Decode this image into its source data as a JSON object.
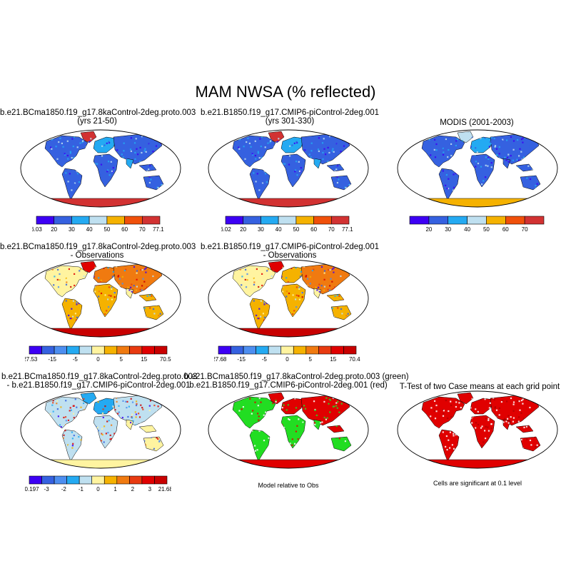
{
  "title": "MAM NWSA (% reflected)",
  "colors": {
    "abs_scale": [
      "#3d00f5",
      "#3561e0",
      "#24aaf2",
      "#bfe0f0",
      "#f5b200",
      "#f0500a",
      "#d23232"
    ],
    "diff_scale": [
      "#3d00f5",
      "#3561e0",
      "#4d8ef0",
      "#24aaf2",
      "#bfe0f0",
      "#fff4a0",
      "#f5b200",
      "#f07a10",
      "#e83a10",
      "#e00000",
      "#c80000"
    ],
    "ocean": "#ffffff",
    "model_green": "#22dd22",
    "obs_red": "#e00000",
    "significant": "#e00000"
  },
  "panels": [
    {
      "title": "b.e21.BCma1850.f19_g17.8kaControl-2deg.proto.003",
      "subtitle": "(yrs 21-50)",
      "colorbar_labels": [
        "6.03",
        "20",
        "30",
        "40",
        "50",
        "60",
        "70",
        "77.19"
      ]
    },
    {
      "title": "b.e21.B1850.f19_g17.CMIP6-piControl-2deg.001",
      "subtitle": "(yrs 301-330)",
      "colorbar_labels": [
        "6.02",
        "20",
        "30",
        "40",
        "50",
        "60",
        "70",
        "77.15"
      ]
    },
    {
      "title": "MODIS (2001-2003)",
      "subtitle": "",
      "colorbar_labels": [
        "",
        "20",
        "30",
        "40",
        "50",
        "60",
        "70",
        ""
      ]
    },
    {
      "title": "b.e21.BCma1850.f19_g17.8kaControl-2deg.proto.003",
      "subtitle": "- Observations",
      "colorbar_labels": [
        "-27.53",
        "-15",
        "-5",
        "0",
        "5",
        "15",
        "70.53"
      ]
    },
    {
      "title": "b.e21.B1850.f19_g17.CMIP6-piControl-2deg.001",
      "subtitle": "- Observations",
      "colorbar_labels": [
        "-27.68",
        "-15",
        "-5",
        "0",
        "5",
        "15",
        "70.43"
      ]
    },
    {
      "title": "b.e21.BCma1850.f19_g17.8kaControl-2deg.proto.003",
      "subtitle": "- b.e21.B1850.f19_g17.CMIP6-piControl-2deg.001",
      "colorbar_labels": [
        "-40.197",
        "-3",
        "-2",
        "-1",
        "0",
        "1",
        "2",
        "3",
        "21.684"
      ]
    },
    {
      "title": "b.e21.BCma1850.f19_g17.8kaControl-2deg.proto.003 (green)",
      "subtitle": "b.e21.B1850.f19_g17.CMIP6-piControl-2deg.001 (red)",
      "caption": "Model relative to Obs"
    },
    {
      "title": "T-Test of two Case means at each grid point",
      "subtitle": "",
      "caption": "Cells are significant at 0.1 level"
    }
  ]
}
